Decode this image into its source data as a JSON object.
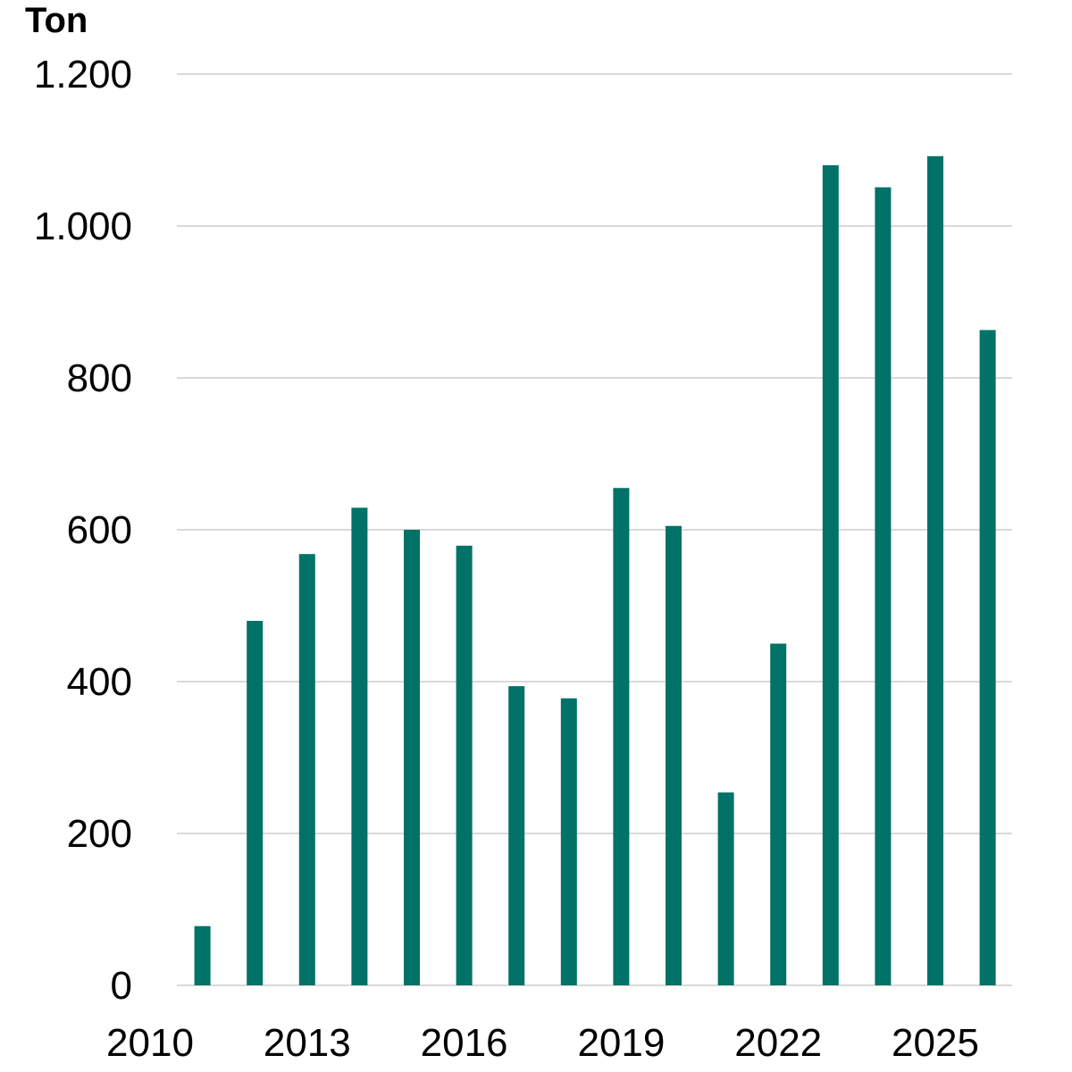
{
  "chart_data": {
    "type": "bar",
    "title": "",
    "xlabel": "",
    "ylabel": "Ton",
    "ylim": [
      0,
      1200
    ],
    "y_ticks": [
      0,
      200,
      400,
      600,
      800,
      1000,
      1200
    ],
    "y_tick_labels": [
      "0",
      "200",
      "400",
      "600",
      "800",
      "1.000",
      "1.200"
    ],
    "x_ticks": [
      2010,
      2013,
      2016,
      2019,
      2022,
      2025
    ],
    "x_tick_labels": [
      "2010",
      "2013",
      "2016",
      "2019",
      "2022",
      "2025"
    ],
    "categories": [
      2011,
      2012,
      2013,
      2014,
      2015,
      2016,
      2017,
      2018,
      2019,
      2020,
      2021,
      2022,
      2023,
      2024,
      2025,
      2026
    ],
    "values": [
      78,
      480,
      568,
      629,
      600,
      579,
      394,
      378,
      655,
      605,
      254,
      450,
      1080,
      1051,
      1092,
      863
    ],
    "grid": true,
    "bar_color": "#007267",
    "grid_color": "#d9d9d9"
  }
}
